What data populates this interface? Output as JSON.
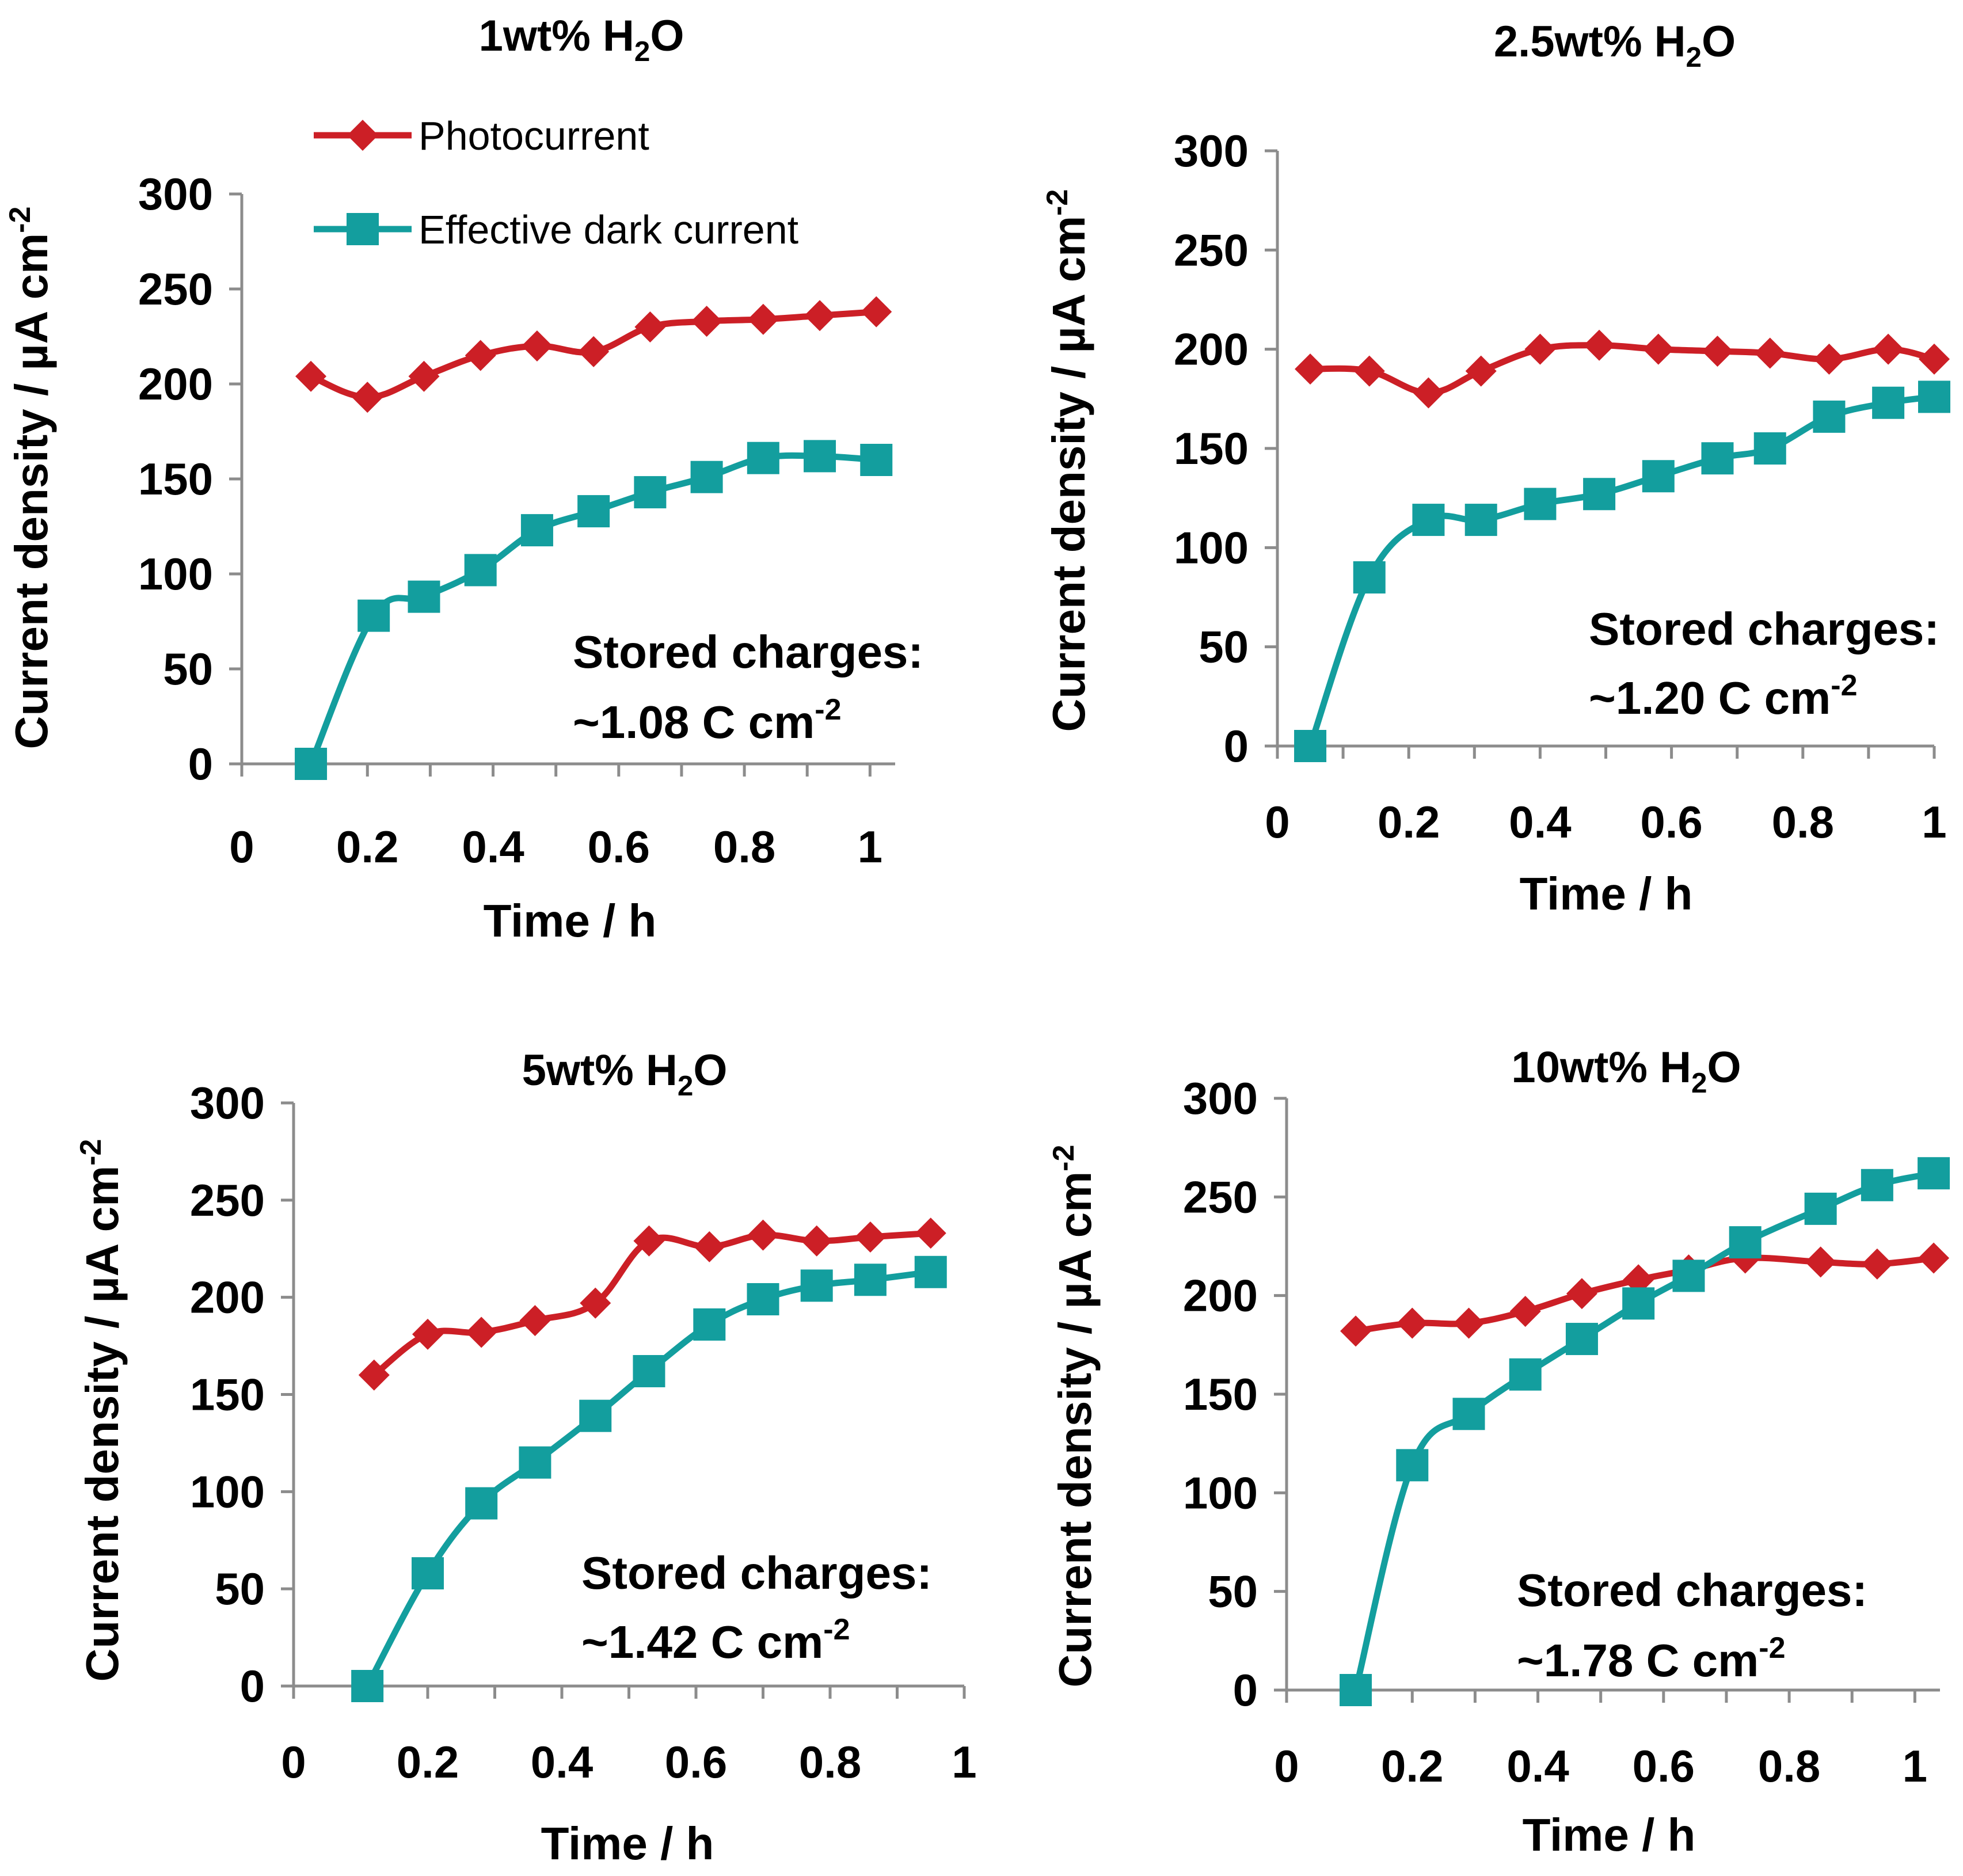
{
  "colors": {
    "photocurrent": "#cc1f26",
    "dark_current": "#139e9e",
    "axis": "#8c8c8c"
  },
  "legend": {
    "photocurrent": "Photocurrent",
    "dark_current": "Effective dark current"
  },
  "chart_data": [
    {
      "type": "line",
      "title": "1wt% H2O",
      "title_main": "1wt% H",
      "title_sub": "2",
      "title_end": "O",
      "xlabel": "Time / h",
      "ylabel": "Current density / µA cm",
      "ylabel_sup": "-2",
      "xlim": [
        0,
        1.04
      ],
      "ylim": [
        0,
        300
      ],
      "xticks": [
        "0",
        "0.2",
        "0.4",
        "0.6",
        "0.8",
        "1"
      ],
      "yticks": [
        "0",
        "50",
        "100",
        "150",
        "200",
        "250",
        "300"
      ],
      "annotation_line1": "Stored charges:",
      "annotation_line2": "~1.08 C cm",
      "annotation_sup": "-2",
      "series": [
        {
          "name": "Photocurrent",
          "marker": "diamond",
          "x": [
            0.11,
            0.2,
            0.29,
            0.38,
            0.47,
            0.56,
            0.65,
            0.74,
            0.83,
            0.92,
            1.01
          ],
          "y": [
            204,
            193,
            204,
            215,
            220,
            217,
            230,
            233,
            234,
            236,
            238
          ]
        },
        {
          "name": "Effective dark current",
          "marker": "square",
          "x": [
            0.11,
            0.21,
            0.29,
            0.38,
            0.47,
            0.56,
            0.65,
            0.74,
            0.83,
            0.92,
            1.01
          ],
          "y": [
            0,
            78,
            88,
            102,
            123,
            133,
            143,
            151,
            161,
            162,
            160
          ]
        }
      ]
    },
    {
      "type": "line",
      "title": "2.5wt% H2O",
      "title_main": "2.5wt% H",
      "title_sub": "2",
      "title_end": "O",
      "xlabel": "Time / h",
      "ylabel": "Current density / µA cm",
      "ylabel_sup": "-2",
      "xlim": [
        0,
        1.0
      ],
      "ylim": [
        0,
        300
      ],
      "xticks": [
        "0",
        "0.2",
        "0.4",
        "0.6",
        "0.8",
        "1"
      ],
      "yticks": [
        "0",
        "50",
        "100",
        "150",
        "200",
        "250",
        "300"
      ],
      "annotation_line1": "Stored charges:",
      "annotation_line2": "~1.20 C cm",
      "annotation_sup": "-2",
      "series": [
        {
          "name": "Photocurrent",
          "marker": "diamond",
          "x": [
            0.05,
            0.14,
            0.23,
            0.31,
            0.4,
            0.49,
            0.58,
            0.67,
            0.75,
            0.84,
            0.93,
            1.0
          ],
          "y": [
            190,
            189,
            178,
            189,
            200,
            202,
            200,
            199,
            198,
            195,
            200,
            195
          ]
        },
        {
          "name": "Effective dark current",
          "marker": "square",
          "x": [
            0.05,
            0.14,
            0.23,
            0.31,
            0.4,
            0.49,
            0.58,
            0.67,
            0.75,
            0.84,
            0.93,
            1.0
          ],
          "y": [
            0,
            85,
            114,
            114,
            122,
            127,
            136,
            145,
            150,
            166,
            173,
            176
          ]
        }
      ]
    },
    {
      "type": "line",
      "title": "5wt% H2O",
      "title_main": "5wt% H",
      "title_sub": "2",
      "title_end": "O",
      "xlabel": "Time / h",
      "ylabel": "Current density / µA cm",
      "ylabel_sup": "-2",
      "xlim": [
        0,
        1.0
      ],
      "ylim": [
        0,
        300
      ],
      "xticks": [
        "0",
        "0.2",
        "0.4",
        "0.6",
        "0.8",
        "1"
      ],
      "yticks": [
        "0",
        "50",
        "100",
        "150",
        "200",
        "250",
        "300"
      ],
      "annotation_line1": "Stored charges:",
      "annotation_line2": "~1.42 C cm",
      "annotation_sup": "-2",
      "series": [
        {
          "name": "Photocurrent",
          "marker": "diamond",
          "x": [
            0.12,
            0.2,
            0.28,
            0.36,
            0.45,
            0.53,
            0.62,
            0.7,
            0.78,
            0.86,
            0.95
          ],
          "y": [
            160,
            181,
            182,
            188,
            197,
            229,
            226,
            232,
            229,
            231,
            233
          ]
        },
        {
          "name": "Effective dark current",
          "marker": "square",
          "x": [
            0.11,
            0.2,
            0.28,
            0.36,
            0.45,
            0.53,
            0.62,
            0.7,
            0.78,
            0.86,
            0.95
          ],
          "y": [
            0,
            58,
            94,
            115,
            139,
            162,
            186,
            199,
            206,
            209,
            213
          ]
        }
      ]
    },
    {
      "type": "line",
      "title": "10wt% H2O",
      "title_main": "10wt% H",
      "title_sub": "2",
      "title_end": "O",
      "xlabel": "Time / h",
      "ylabel": "Current density / µA cm",
      "ylabel_sup": "-2",
      "xlim": [
        0,
        1.04
      ],
      "ylim": [
        0,
        300
      ],
      "xticks": [
        "0",
        "0.2",
        "0.4",
        "0.6",
        "0.8",
        "1"
      ],
      "yticks": [
        "0",
        "50",
        "100",
        "150",
        "200",
        "250",
        "300"
      ],
      "annotation_line1": "Stored charges:",
      "annotation_line2": "~1.78 C cm",
      "annotation_sup": "-2",
      "series": [
        {
          "name": "Photocurrent",
          "marker": "diamond",
          "x": [
            0.11,
            0.2,
            0.29,
            0.38,
            0.47,
            0.56,
            0.64,
            0.73,
            0.85,
            0.94,
            1.03
          ],
          "y": [
            182,
            186,
            186,
            192,
            201,
            208,
            213,
            219,
            217,
            216,
            219
          ]
        },
        {
          "name": "Effective dark current",
          "marker": "square",
          "x": [
            0.11,
            0.2,
            0.29,
            0.38,
            0.47,
            0.56,
            0.64,
            0.73,
            0.85,
            0.94,
            1.03
          ],
          "y": [
            0,
            114,
            140,
            160,
            178,
            196,
            210,
            227,
            244,
            256,
            262
          ]
        }
      ]
    }
  ]
}
